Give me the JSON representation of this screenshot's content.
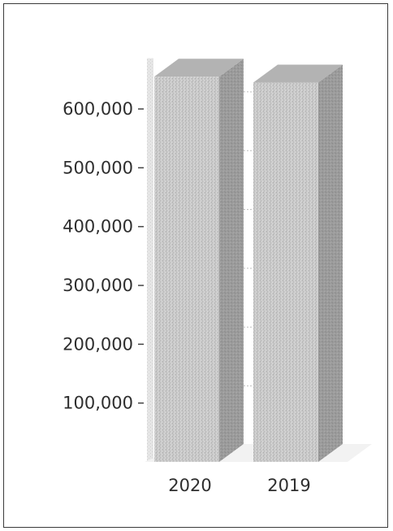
{
  "chart_data": {
    "type": "bar",
    "style": "3d",
    "categories": [
      "2020",
      "2019"
    ],
    "values": [
      655000,
      645000
    ],
    "ylim": [
      0,
      700000
    ],
    "yticks": [
      100000,
      200000,
      300000,
      400000,
      500000,
      600000
    ],
    "ytick_labels": [
      "100,000",
      "200,000",
      "300,000",
      "400,000",
      "500,000",
      "600,000"
    ],
    "title": "",
    "xlabel": "",
    "ylabel": "",
    "grid": true,
    "legend": "none",
    "colors": {
      "bar_front": "#c9c9c9",
      "bar_side": "#9c9c9c",
      "bar_top": "#b3b3b3",
      "grid": "#bdbdbd",
      "text": "#2e2e2e"
    }
  }
}
